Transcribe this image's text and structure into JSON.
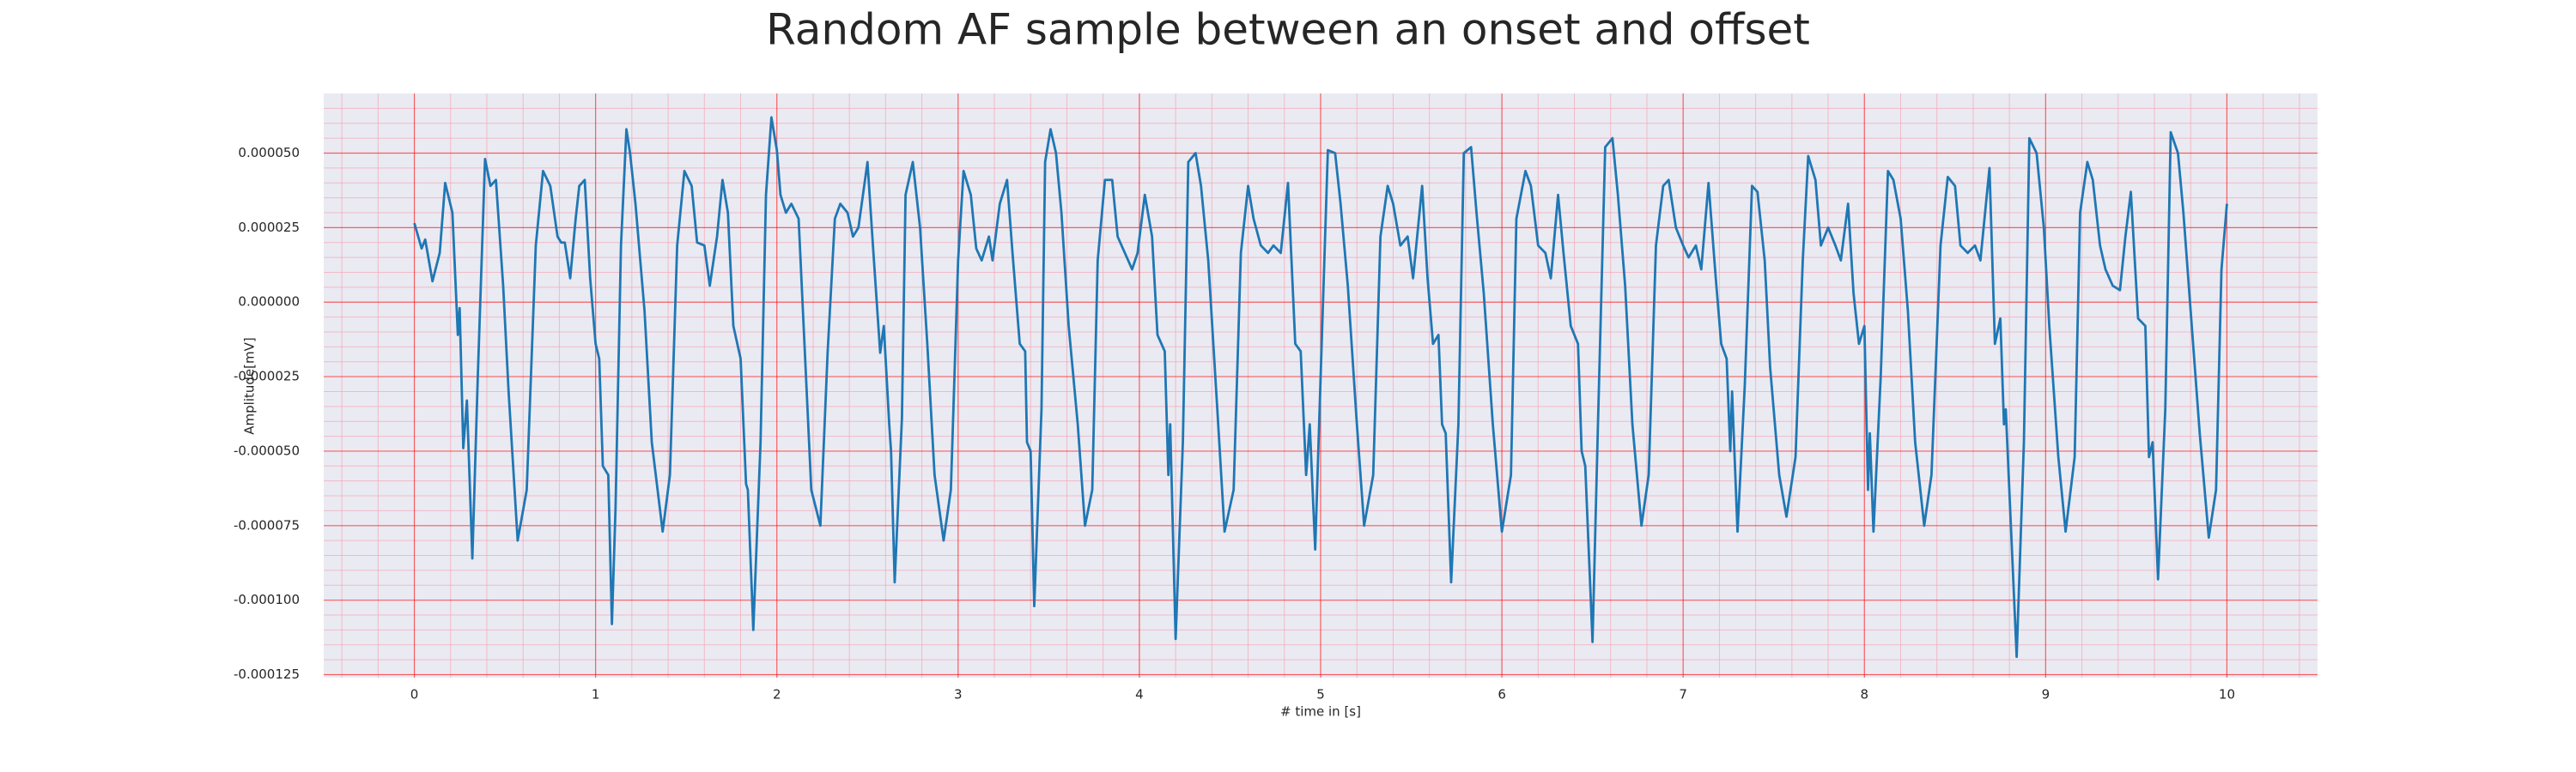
{
  "chart_data": {
    "type": "line",
    "title": "Random AF sample between an onset and offset",
    "xlabel": "# time in [s]",
    "ylabel": "Amplitude[mV]",
    "color": "#1f77b4",
    "grid": true,
    "minor_grid": true,
    "xlim": [
      -0.5,
      10.5
    ],
    "ylim": [
      -0.000126,
      7e-05
    ],
    "xticks": [
      0,
      1,
      2,
      3,
      4,
      5,
      6,
      7,
      8,
      9,
      10
    ],
    "yticks": [
      {
        "value": 5e-05,
        "label": "0.000050"
      },
      {
        "value": 2.5e-05,
        "label": "0.000025"
      },
      {
        "value": 0,
        "label": "0.000000"
      },
      {
        "value": -2.5e-05,
        "label": "-0.000025"
      },
      {
        "value": -5e-05,
        "label": "-0.000050"
      },
      {
        "value": -7.5e-05,
        "label": "-0.000075"
      },
      {
        "value": -0.0001,
        "label": "-0.000100"
      },
      {
        "value": -0.000125,
        "label": "-0.000125"
      }
    ],
    "x": [
      0,
      0.04,
      0.06,
      0.1,
      0.14,
      0.17,
      0.21,
      0.24,
      0.25,
      0.27,
      0.29,
      0.32,
      0.35,
      0.39,
      0.42,
      0.45,
      0.49,
      0.52,
      0.57,
      0.62,
      0.67,
      0.71,
      0.75,
      0.79,
      0.81,
      0.83,
      0.86,
      0.89,
      0.91,
      0.94,
      0.97,
      1.0,
      1.02,
      1.04,
      1.07,
      1.09,
      1.11,
      1.14,
      1.17,
      1.19,
      1.22,
      1.27,
      1.31,
      1.37,
      1.41,
      1.45,
      1.49,
      1.53,
      1.56,
      1.6,
      1.63,
      1.67,
      1.7,
      1.73,
      1.76,
      1.8,
      1.83,
      1.84,
      1.87,
      1.91,
      1.94,
      1.97,
      2.0,
      2.02,
      2.05,
      2.08,
      2.12,
      2.15,
      2.19,
      2.24,
      2.28,
      2.32,
      2.35,
      2.39,
      2.42,
      2.45,
      2.5,
      2.53,
      2.57,
      2.59,
      2.62,
      2.63,
      2.65,
      2.69,
      2.71,
      2.75,
      2.79,
      2.83,
      2.87,
      2.92,
      2.96,
      3.0,
      3.03,
      3.07,
      3.1,
      3.13,
      3.17,
      3.19,
      3.23,
      3.27,
      3.3,
      3.34,
      3.37,
      3.38,
      3.4,
      3.42,
      3.46,
      3.48,
      3.51,
      3.54,
      3.57,
      3.61,
      3.66,
      3.7,
      3.74,
      3.77,
      3.81,
      3.85,
      3.88,
      3.92,
      3.96,
      3.99,
      4.03,
      4.07,
      4.1,
      4.14,
      4.16,
      4.17,
      4.2,
      4.24,
      4.27,
      4.31,
      4.34,
      4.38,
      4.43,
      4.47,
      4.52,
      4.56,
      4.6,
      4.63,
      4.67,
      4.71,
      4.74,
      4.78,
      4.82,
      4.86,
      4.89,
      4.92,
      4.94,
      4.97,
      5.0,
      5.04,
      5.08,
      5.11,
      5.15,
      5.2,
      5.24,
      5.29,
      5.33,
      5.37,
      5.4,
      5.44,
      5.48,
      5.51,
      5.56,
      5.59,
      5.62,
      5.65,
      5.67,
      5.69,
      5.72,
      5.76,
      5.79,
      5.83,
      5.86,
      5.9,
      5.95,
      6.0,
      6.05,
      6.08,
      6.13,
      6.16,
      6.2,
      6.24,
      6.27,
      6.31,
      6.34,
      6.38,
      6.42,
      6.44,
      6.46,
      6.5,
      6.53,
      6.57,
      6.61,
      6.64,
      6.68,
      6.72,
      6.77,
      6.81,
      6.85,
      6.89,
      6.92,
      6.96,
      7.0,
      7.03,
      7.07,
      7.1,
      7.14,
      7.18,
      7.21,
      7.24,
      7.26,
      7.27,
      7.3,
      7.34,
      7.38,
      7.41,
      7.45,
      7.48,
      7.53,
      7.57,
      7.62,
      7.66,
      7.69,
      7.73,
      7.76,
      7.8,
      7.84,
      7.87,
      7.91,
      7.94,
      7.97,
      8.0,
      8.02,
      8.03,
      8.05,
      8.09,
      8.13,
      8.16,
      8.2,
      8.24,
      8.28,
      8.33,
      8.37,
      8.42,
      8.46,
      8.5,
      8.53,
      8.57,
      8.61,
      8.64,
      8.69,
      8.72,
      8.75,
      8.77,
      8.78,
      8.84,
      8.88,
      8.91,
      8.95,
      8.99,
      9.02,
      9.07,
      9.11,
      9.16,
      9.19,
      9.23,
      9.26,
      9.3,
      9.33,
      9.37,
      9.41,
      9.44,
      9.47,
      9.51,
      9.55,
      9.57,
      9.59,
      9.62,
      9.66,
      9.69,
      9.73,
      9.76,
      9.8,
      9.85,
      9.9,
      9.94,
      9.97,
      10.0
    ],
    "values": [
      2.65e-05,
      1.8e-05,
      2.1e-05,
      7e-06,
      1.65e-05,
      4e-05,
      3e-05,
      -1.1e-05,
      -2e-06,
      -4.9e-05,
      -3.3e-05,
      -8.6e-05,
      -2.5e-05,
      4.8e-05,
      3.9e-05,
      4.1e-05,
      5.5e-06,
      -3e-05,
      -8e-05,
      -6.3e-05,
      1.9e-05,
      4.4e-05,
      3.9e-05,
      2.2e-05,
      2e-05,
      2e-05,
      8e-06,
      2.8e-05,
      3.9e-05,
      4.1e-05,
      8e-06,
      -1.4e-05,
      -1.9e-05,
      -5.5e-05,
      -5.8e-05,
      -0.000108,
      -6.9e-05,
      1.9e-05,
      5.8e-05,
      5e-05,
      3.3e-05,
      -3e-06,
      -4.7e-05,
      -7.7e-05,
      -5.8e-05,
      1.9e-05,
      4.4e-05,
      3.9e-05,
      2e-05,
      1.9e-05,
      5.5e-06,
      2.2e-05,
      4.1e-05,
      3e-05,
      -8e-06,
      -1.9e-05,
      -6.1e-05,
      -6.3e-05,
      -0.00011,
      -4.7e-05,
      3.6e-05,
      6.2e-05,
      5.1e-05,
      3.6e-05,
      3e-05,
      3.3e-05,
      2.8e-05,
      -1.1e-05,
      -6.3e-05,
      -7.5e-05,
      -1.7e-05,
      2.8e-05,
      3.3e-05,
      3e-05,
      2.2e-05,
      2.5e-05,
      4.7e-05,
      1.9e-05,
      -1.7e-05,
      -8e-06,
      -4.1e-05,
      -5e-05,
      -9.4e-05,
      -3.9e-05,
      3.6e-05,
      4.7e-05,
      2.5e-05,
      -1.4e-05,
      -5.8e-05,
      -8e-05,
      -6.3e-05,
      1.4e-05,
      4.4e-05,
      3.6e-05,
      1.8e-05,
      1.4e-05,
      2.2e-05,
      1.4e-05,
      3.3e-05,
      4.1e-05,
      1.65e-05,
      -1.4e-05,
      -1.65e-05,
      -4.7e-05,
      -5e-05,
      -0.000102,
      -3.6e-05,
      4.7e-05,
      5.8e-05,
      5e-05,
      3e-05,
      -8e-06,
      -4.1e-05,
      -7.5e-05,
      -6.3e-05,
      1.4e-05,
      4.1e-05,
      4.1e-05,
      2.2e-05,
      1.65e-05,
      1.1e-05,
      1.65e-05,
      3.6e-05,
      2.2e-05,
      -1.1e-05,
      -1.65e-05,
      -5.8e-05,
      -4.1e-05,
      -0.000113,
      -4.7e-05,
      4.7e-05,
      5e-05,
      3.9e-05,
      1.4e-05,
      -3.6e-05,
      -7.7e-05,
      -6.3e-05,
      1.65e-05,
      3.9e-05,
      2.8e-05,
      1.9e-05,
      1.65e-05,
      1.9e-05,
      1.65e-05,
      4e-05,
      -1.4e-05,
      -1.65e-05,
      -5.8e-05,
      -4.1e-05,
      -8.3e-05,
      -2.5e-05,
      5.1e-05,
      5e-05,
      3.3e-05,
      5.5e-06,
      -4.1e-05,
      -7.5e-05,
      -5.8e-05,
      2.2e-05,
      3.9e-05,
      3.3e-05,
      1.9e-05,
      2.2e-05,
      8e-06,
      3.9e-05,
      8e-06,
      -1.4e-05,
      -1.1e-05,
      -4.1e-05,
      -4.4e-05,
      -9.4e-05,
      -4.1e-05,
      5e-05,
      5.2e-05,
      3e-05,
      3e-06,
      -4.1e-05,
      -7.7e-05,
      -5.8e-05,
      2.8e-05,
      4.4e-05,
      3.9e-05,
      1.9e-05,
      1.65e-05,
      8e-06,
      3.6e-05,
      1.65e-05,
      -8e-06,
      -1.4e-05,
      -5e-05,
      -5.5e-05,
      -0.000114,
      -4.1e-05,
      5.2e-05,
      5.5e-05,
      3.6e-05,
      5.5e-06,
      -4.1e-05,
      -7.5e-05,
      -5.8e-05,
      1.9e-05,
      3.9e-05,
      4.1e-05,
      2.5e-05,
      1.9e-05,
      1.5e-05,
      1.9e-05,
      1.1e-05,
      4e-05,
      8e-06,
      -1.4e-05,
      -1.9e-05,
      -5e-05,
      -3e-05,
      -7.7e-05,
      -2.8e-05,
      3.9e-05,
      3.7e-05,
      1.4e-05,
      -2.2e-05,
      -5.8e-05,
      -7.2e-05,
      -5.2e-05,
      1.4e-05,
      4.9e-05,
      4.1e-05,
      1.9e-05,
      2.5e-05,
      1.9e-05,
      1.4e-05,
      3.3e-05,
      3e-06,
      -1.4e-05,
      -8e-06,
      -6.3e-05,
      -4.4e-05,
      -7.7e-05,
      -2.5e-05,
      4.4e-05,
      4.1e-05,
      2.8e-05,
      -3e-06,
      -4.7e-05,
      -7.5e-05,
      -5.8e-05,
      1.9e-05,
      4.2e-05,
      3.9e-05,
      1.9e-05,
      1.65e-05,
      1.9e-05,
      1.4e-05,
      4.5e-05,
      -1.4e-05,
      -5.5e-06,
      -4.1e-05,
      -3.6e-05,
      -0.000119,
      -4.7e-05,
      5.5e-05,
      5e-05,
      2.5e-05,
      -8e-06,
      -5.2e-05,
      -7.7e-05,
      -5.2e-05,
      3e-05,
      4.7e-05,
      4.1e-05,
      1.9e-05,
      1.1e-05,
      5.5e-06,
      4e-06,
      2.2e-05,
      3.7e-05,
      -5.5e-06,
      -8e-06,
      -5.2e-05,
      -4.7e-05,
      -9.3e-05,
      -3.6e-05,
      5.7e-05,
      5e-05,
      3e-05,
      -3e-06,
      -4.4e-05,
      -7.9e-05,
      -6.3e-05,
      1.1e-05,
      3.3e-05
    ]
  }
}
